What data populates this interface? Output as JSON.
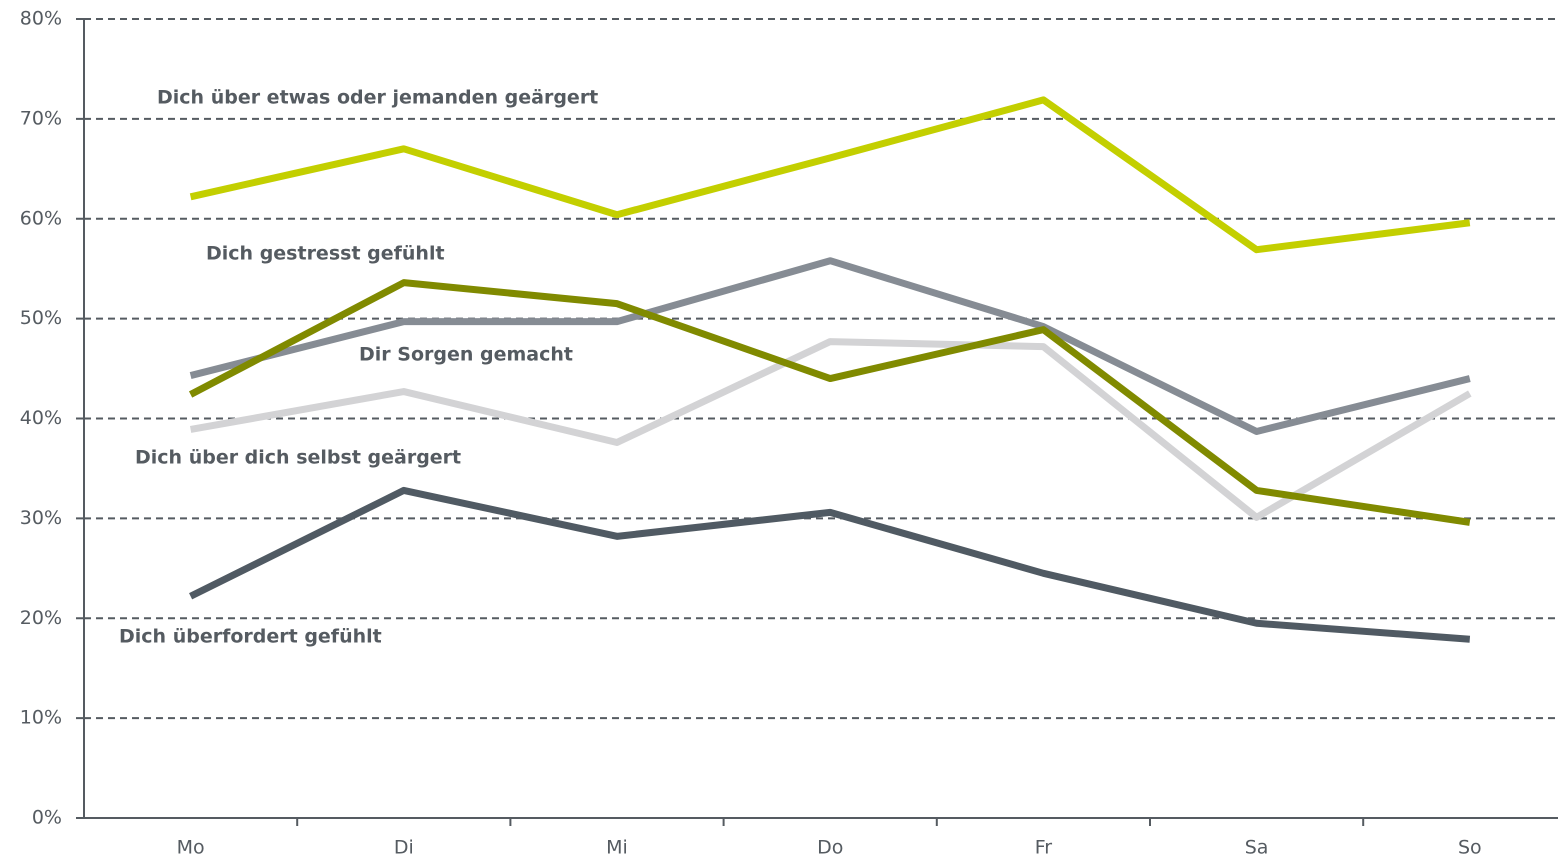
{
  "chart_data": {
    "type": "line",
    "categories": [
      "Mo",
      "Di",
      "Mi",
      "Do",
      "Fr",
      "Sa",
      "So"
    ],
    "series": [
      {
        "name": "Dich über etwas oder jemanden geärgert",
        "color": "#c3cf00",
        "values": [
          62.2,
          67.0,
          60.4,
          66.1,
          71.9,
          56.9,
          59.6
        ]
      },
      {
        "name": "Dich gestresst gefühlt",
        "color": "#808a00",
        "values": [
          42.4,
          53.6,
          51.5,
          44.0,
          48.9,
          32.8,
          29.6
        ]
      },
      {
        "name": "Dir Sorgen gemacht",
        "color": "#868c94",
        "values": [
          44.3,
          49.7,
          49.7,
          55.8,
          49.2,
          38.7,
          44.0
        ]
      },
      {
        "name": "Dich über dich selbst geärgert",
        "color": "#d3d3d5",
        "values": [
          38.9,
          42.7,
          37.6,
          47.7,
          47.2,
          30.1,
          42.5
        ]
      },
      {
        "name": "Dich überfordert gefühlt",
        "color": "#505a63",
        "values": [
          22.2,
          32.8,
          28.2,
          30.6,
          24.5,
          19.5,
          17.9
        ]
      }
    ],
    "ylim": [
      0,
      80
    ],
    "yticks": [
      {
        "value": 0,
        "label": "0%"
      },
      {
        "value": 10,
        "label": "10%"
      },
      {
        "value": 20,
        "label": "20%"
      },
      {
        "value": 30,
        "label": "30%"
      },
      {
        "value": 40,
        "label": "40%"
      },
      {
        "value": 50,
        "label": "50%"
      },
      {
        "value": 60,
        "label": "60%"
      },
      {
        "value": 70,
        "label": "70%"
      },
      {
        "value": 80,
        "label": "80%"
      }
    ],
    "grid": true
  }
}
